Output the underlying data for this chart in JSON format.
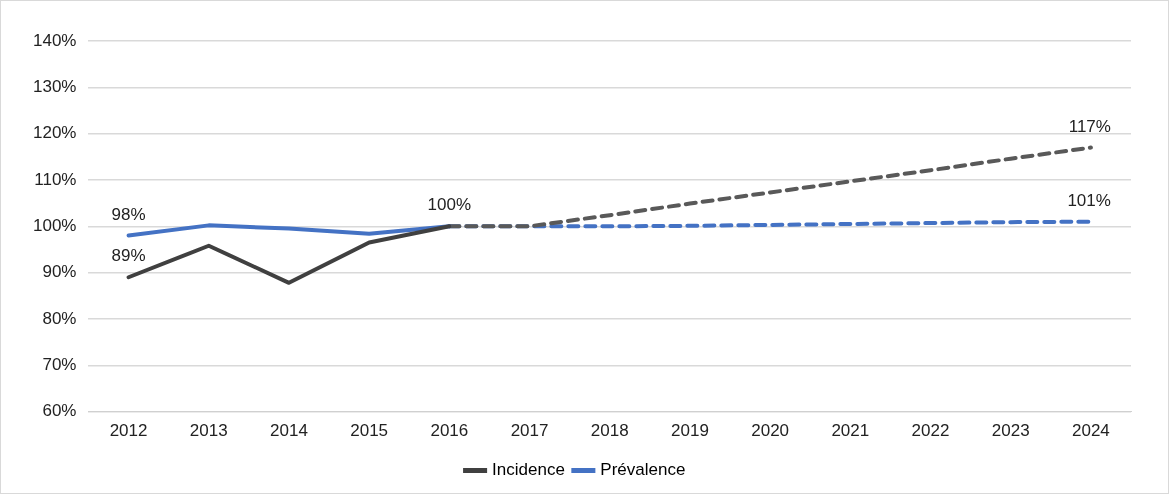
{
  "chart_data": {
    "type": "line",
    "categories": [
      "2012",
      "2013",
      "2014",
      "2015",
      "2016",
      "2017",
      "2018",
      "2019",
      "2020",
      "2021",
      "2022",
      "2023",
      "2024"
    ],
    "series": [
      {
        "name": "Incidence",
        "color": "#404040",
        "line_style": "solid",
        "values": [
          89,
          95.8,
          87.8,
          96.5,
          100,
          null,
          null,
          null,
          null,
          null,
          null,
          null,
          null
        ],
        "value_labels": [
          "89%",
          null,
          null,
          null,
          null,
          null,
          null,
          null,
          null,
          null,
          null,
          null,
          null
        ]
      },
      {
        "name": "Prévalence",
        "color": "#4472c4",
        "line_style": "solid",
        "values": [
          98,
          100.2,
          99.5,
          98.4,
          100,
          null,
          null,
          null,
          null,
          null,
          null,
          null,
          null
        ],
        "value_labels": [
          "98%",
          null,
          null,
          null,
          "100%",
          null,
          null,
          null,
          null,
          null,
          null,
          null,
          null
        ]
      },
      {
        "color": "#595959",
        "line_style": "dashed",
        "values": [
          null,
          null,
          null,
          null,
          100,
          100,
          102.4,
          104.9,
          107.3,
          109.7,
          112.1,
          114.6,
          117
        ],
        "value_labels": [
          null,
          null,
          null,
          null,
          null,
          null,
          null,
          null,
          null,
          null,
          null,
          null,
          "117%"
        ]
      },
      {
        "color": "#4472c4",
        "line_style": "dashed",
        "values": [
          null,
          null,
          null,
          null,
          100,
          100,
          100,
          100.1,
          100.3,
          100.5,
          100.7,
          100.9,
          101
        ],
        "value_labels": [
          null,
          null,
          null,
          null,
          null,
          null,
          null,
          null,
          null,
          null,
          null,
          null,
          "101%"
        ]
      }
    ],
    "ylim": [
      60,
      140
    ],
    "yticks": [
      {
        "value": 60,
        "label": "60%"
      },
      {
        "value": 70,
        "label": "70%"
      },
      {
        "value": 80,
        "label": "80%"
      },
      {
        "value": 90,
        "label": "90%"
      },
      {
        "value": 100,
        "label": "100%"
      },
      {
        "value": 110,
        "label": "110%"
      },
      {
        "value": 120,
        "label": "120%"
      },
      {
        "value": 130,
        "label": "130%"
      },
      {
        "value": 140,
        "label": "140%"
      }
    ],
    "grid": "y",
    "legend": "bottom",
    "marker": "none"
  }
}
